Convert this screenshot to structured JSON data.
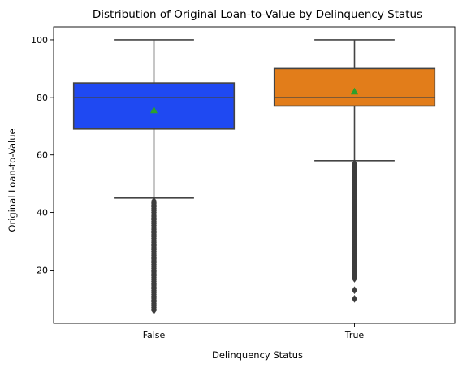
{
  "chart_data": {
    "type": "box",
    "title": "Distribution of Original Loan-to-Value by Delinquency Status",
    "xlabel": "Delinquency Status",
    "ylabel": "Original Loan-to-Value",
    "categories": [
      "False",
      "True"
    ],
    "ylim": [
      1.5,
      104.5
    ],
    "yticks": [
      20,
      40,
      60,
      80,
      100
    ],
    "grid": false,
    "colors": {
      "False": "#1f49f2",
      "True": "#e27d1a",
      "mean_marker": "#2ca02c",
      "lines": "#444444"
    },
    "boxes": [
      {
        "category": "False",
        "whisker_low": 45,
        "q1": 69,
        "median": 80,
        "q3": 85,
        "whisker_high": 100,
        "mean": 75.5,
        "outliers_range": [
          6,
          44
        ]
      },
      {
        "category": "True",
        "whisker_low": 58,
        "q1": 77,
        "median": 80,
        "q3": 90,
        "whisker_high": 100,
        "mean": 82,
        "outliers_range": [
          17,
          57
        ],
        "outliers_extra": [
          13,
          10
        ]
      }
    ]
  }
}
